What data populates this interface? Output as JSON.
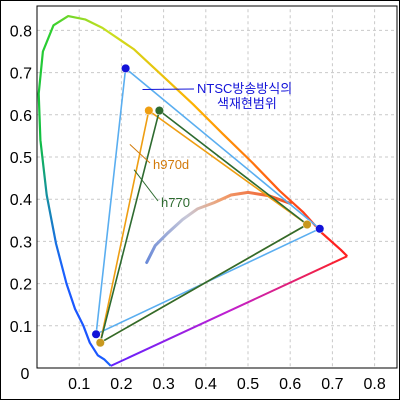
{
  "chart_data": {
    "type": "scatter",
    "title": "",
    "xlabel": "",
    "ylabel": "",
    "xlim": [
      0,
      0.85
    ],
    "ylim": [
      0,
      0.85
    ],
    "grid": true,
    "x_ticks": [
      "0.1",
      "0.2",
      "0.3",
      "0.4",
      "0.5",
      "0.6",
      "0.7",
      "0.8"
    ],
    "y_ticks": [
      "0.1",
      "0.2",
      "0.3",
      "0.4",
      "0.5",
      "0.6",
      "0.7",
      "0.8"
    ],
    "origin_label": "0",
    "spectral_locus": [
      [
        0.175,
        0.005
      ],
      [
        0.16,
        0.02
      ],
      [
        0.144,
        0.03
      ],
      [
        0.125,
        0.06
      ],
      [
        0.11,
        0.1
      ],
      [
        0.09,
        0.14
      ],
      [
        0.07,
        0.2
      ],
      [
        0.045,
        0.295
      ],
      [
        0.023,
        0.41
      ],
      [
        0.008,
        0.54
      ],
      [
        0.004,
        0.65
      ],
      [
        0.014,
        0.75
      ],
      [
        0.039,
        0.812
      ],
      [
        0.074,
        0.834
      ],
      [
        0.114,
        0.826
      ],
      [
        0.155,
        0.806
      ],
      [
        0.23,
        0.755
      ],
      [
        0.3,
        0.69
      ],
      [
        0.37,
        0.625
      ],
      [
        0.44,
        0.555
      ],
      [
        0.51,
        0.487
      ],
      [
        0.575,
        0.42
      ],
      [
        0.63,
        0.37
      ],
      [
        0.675,
        0.32
      ],
      [
        0.72,
        0.28
      ],
      [
        0.735,
        0.265
      ]
    ],
    "purple_line": [
      [
        0.735,
        0.265
      ],
      [
        0.175,
        0.005
      ]
    ],
    "blackbody_locus": [
      [
        0.26,
        0.25
      ],
      [
        0.28,
        0.29
      ],
      [
        0.31,
        0.32
      ],
      [
        0.345,
        0.352
      ],
      [
        0.38,
        0.377
      ],
      [
        0.42,
        0.392
      ],
      [
        0.46,
        0.41
      ],
      [
        0.5,
        0.416
      ],
      [
        0.55,
        0.408
      ],
      [
        0.6,
        0.39
      ]
    ],
    "series": [
      {
        "name": "NTSC방송방식의 색재현범위",
        "color": "#5aaef0",
        "vertices": [
          [
            0.67,
            0.33
          ],
          [
            0.21,
            0.71
          ],
          [
            0.14,
            0.08
          ]
        ]
      },
      {
        "name": "h970d",
        "color": "#ee9e12",
        "vertices": [
          [
            0.64,
            0.34
          ],
          [
            0.265,
            0.61
          ],
          [
            0.15,
            0.06
          ]
        ]
      },
      {
        "name": "h770",
        "color": "#2e6b30",
        "vertices": [
          [
            0.64,
            0.34
          ],
          [
            0.29,
            0.61
          ],
          [
            0.15,
            0.06
          ]
        ]
      }
    ],
    "markers": [
      {
        "x": 0.21,
        "y": 0.71,
        "color": "#1212d8"
      },
      {
        "x": 0.67,
        "y": 0.33,
        "color": "#1212d8"
      },
      {
        "x": 0.14,
        "y": 0.08,
        "color": "#1212d8"
      },
      {
        "x": 0.265,
        "y": 0.61,
        "color": "#ee9e12"
      },
      {
        "x": 0.64,
        "y": 0.34,
        "color": "#c8981e"
      },
      {
        "x": 0.15,
        "y": 0.06,
        "color": "#c8981e"
      },
      {
        "x": 0.29,
        "y": 0.61,
        "color": "#2e6b30"
      }
    ],
    "annotations": [
      {
        "series_index": 0,
        "lines": [
          "NTSC방송방식의",
          "색재현범위"
        ],
        "color": "#1212d8",
        "target": [
          0.25,
          0.66
        ]
      },
      {
        "series_index": 1,
        "lines": [
          "h970d"
        ],
        "color": "#d27a0a",
        "target": [
          0.22,
          0.53
        ]
      },
      {
        "series_index": 2,
        "lines": [
          "h770"
        ],
        "color": "#2e6b30",
        "target": [
          0.23,
          0.47
        ]
      }
    ]
  }
}
